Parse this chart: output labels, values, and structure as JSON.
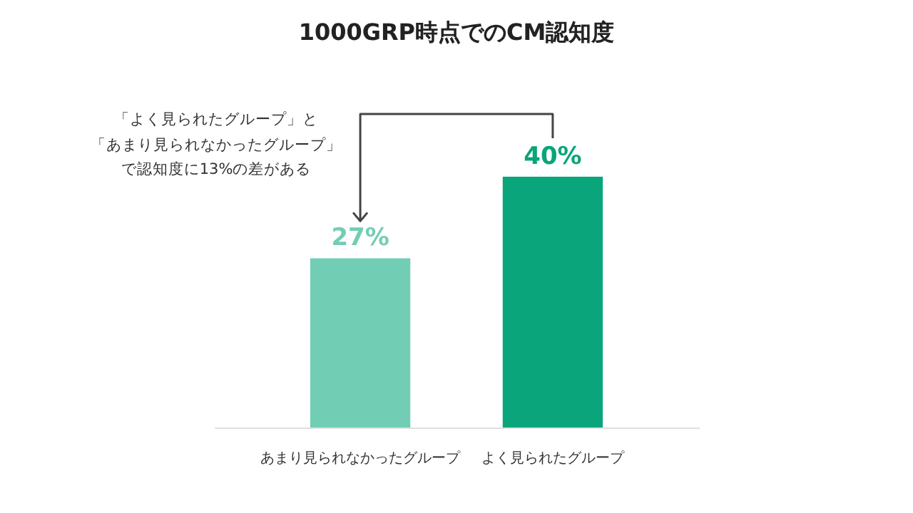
{
  "chart_data": {
    "type": "bar",
    "title": "1000GRP時点でのCM認知度",
    "categories": [
      "あまり見られなかったグループ",
      "よく見られたグループ"
    ],
    "values": [
      27,
      40
    ],
    "colors": [
      "#72cdb5",
      "#0aa57a"
    ],
    "value_labels": [
      "27%",
      "40%"
    ],
    "annotations": [
      "「よく見られたグループ」と「あまり見られなかったグループ」で認知度に13%の差がある"
    ],
    "grid": false,
    "legend": false
  }
}
